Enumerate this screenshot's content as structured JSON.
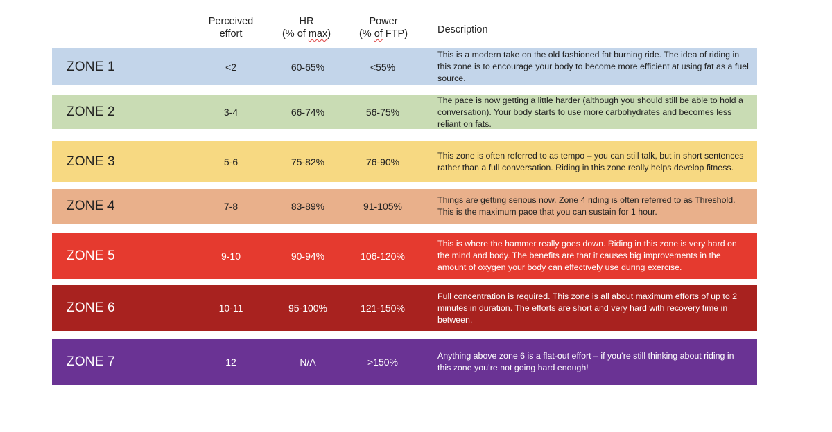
{
  "headers": {
    "effort_line1": "Perceived",
    "effort_line2": "effort",
    "hr_line1": "HR",
    "hr_line2_pre": "(% of ",
    "hr_line2_wavy": "max",
    "hr_line2_post": ")",
    "power_line1": "Power",
    "power_line2_pre": "(% ",
    "power_line2_wavy": "of",
    "power_line2_post": " FTP)",
    "description": "Description"
  },
  "zones": [
    {
      "name": "ZONE 1",
      "effort": "<2",
      "hr": "60-65%",
      "power": "<55%",
      "description": "This is a modern take on the old fashioned fat burning ride. The idea of riding in this zone is to encourage your body to become more efficient at using fat as a fuel source.",
      "bg": "#c3d5ea",
      "fg": "#222222"
    },
    {
      "name": "ZONE 2",
      "effort": "3-4",
      "hr": "66-74%",
      "power": "56-75%",
      "description": "The pace is now getting a little harder (although you should still be able to hold a conversation). Your body starts to use more carbohydrates and becomes less reliant on fats.",
      "bg": "#c9dcb4",
      "fg": "#222222"
    },
    {
      "name": "ZONE 3",
      "effort": "5-6",
      "hr": "75-82%",
      "power": "76-90%",
      "description": "This zone is often referred to as tempo – you can still talk, but in short sentences rather than a full conversation. Riding in this zone really helps develop fitness.",
      "bg": "#f7d982",
      "fg": "#222222"
    },
    {
      "name": "ZONE 4",
      "effort": "7-8",
      "hr": "83-89%",
      "power": "91-105%",
      "description": "Things are getting serious now. Zone 4 riding is often referred to as Threshold. This is the maximum pace that you can sustain for 1 hour.",
      "bg": "#e9b08b",
      "fg": "#222222"
    },
    {
      "name": "ZONE 5",
      "effort": "9-10",
      "hr": "90-94%",
      "power": "106-120%",
      "description": "This is where the hammer really goes down. Riding in this zone is very hard on the mind and body. The benefits are that it causes big improvements in the amount of oxygen your body can effectively use during exercise.",
      "bg": "#e53a2f",
      "fg": "#ffffff"
    },
    {
      "name": "ZONE 6",
      "effort": "10-11",
      "hr": "95-100%",
      "power": "121-150%",
      "description": "Full concentration is required. This zone is all about maximum efforts of up to 2 minutes in duration. The efforts are short and very hard with recovery time in between.",
      "bg": "#a8221f",
      "fg": "#ffffff"
    },
    {
      "name": "ZONE 7",
      "effort": "12",
      "hr": "N/A",
      "power": ">150%",
      "description": "Anything above zone 6 is a flat-out effort – if you’re still thinking about riding in this zone you’re not going hard enough!",
      "bg": "#6a3394",
      "fg": "#ffffff"
    }
  ]
}
